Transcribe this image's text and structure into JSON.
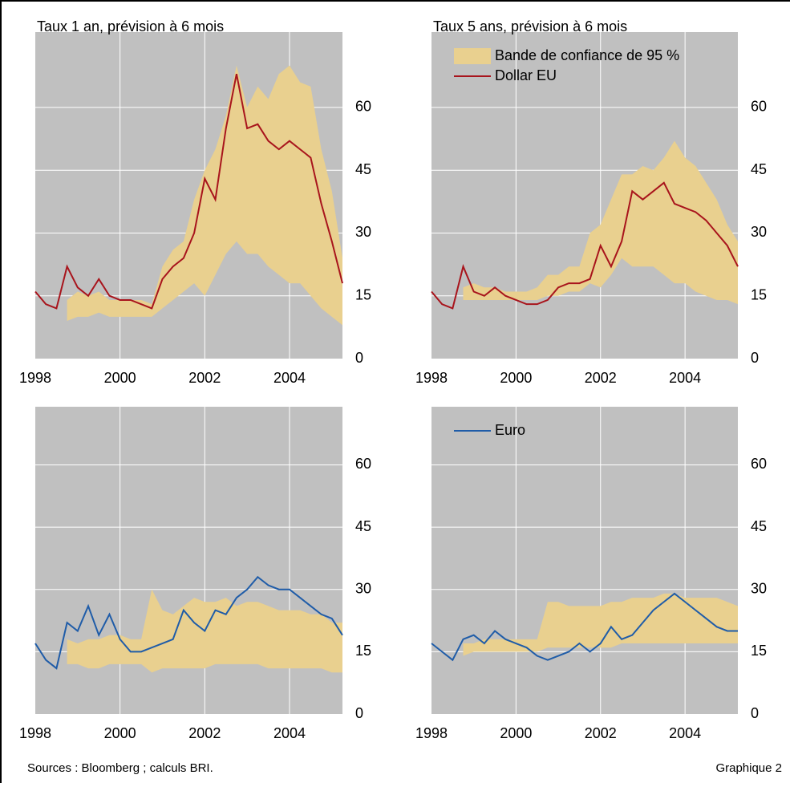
{
  "chart_data": [
    {
      "type": "line",
      "title": "Taux 1 an, prévision à 6 mois",
      "grid": true,
      "x": [
        1998,
        1998.25,
        1998.5,
        1998.75,
        1999,
        1999.25,
        1999.5,
        1999.75,
        2000,
        2000.25,
        2000.5,
        2000.75,
        2001,
        2001.25,
        2001.5,
        2001.75,
        2002,
        2002.25,
        2002.5,
        2002.75,
        2003,
        2003.25,
        2003.5,
        2003.75,
        2004,
        2004.25,
        2004.5,
        2004.75,
        2005,
        2005.25
      ],
      "xlim": [
        1998,
        2005.25
      ],
      "xticks": [
        1998,
        2000,
        2002,
        2004
      ],
      "ylim": [
        0,
        78
      ],
      "yticks": [
        0,
        15,
        30,
        45,
        60
      ],
      "series": [
        {
          "kind": "band",
          "color": "#e9d08f",
          "lower": [
            null,
            null,
            null,
            9,
            10,
            10,
            11,
            10,
            10,
            10,
            10,
            10,
            12,
            14,
            16,
            18,
            15,
            20,
            25,
            28,
            25,
            25,
            22,
            20,
            18,
            18,
            15,
            12,
            10,
            8
          ],
          "upper": [
            null,
            null,
            null,
            14,
            16,
            15,
            16,
            14,
            14,
            14,
            14,
            13,
            22,
            26,
            28,
            38,
            45,
            50,
            58,
            70,
            60,
            65,
            62,
            68,
            70,
            66,
            65,
            50,
            40,
            24
          ]
        },
        {
          "kind": "line",
          "color": "#a8141c",
          "values": [
            16,
            13,
            12,
            22,
            17,
            15,
            19,
            15,
            14,
            14,
            13,
            12,
            19,
            22,
            24,
            30,
            43,
            38,
            55,
            68,
            55,
            56,
            52,
            50,
            52,
            50,
            48,
            37,
            28,
            18
          ]
        }
      ]
    },
    {
      "type": "line",
      "title": "Taux 5 ans, prévision à 6 mois",
      "grid": true,
      "x": [
        1998,
        1998.25,
        1998.5,
        1998.75,
        1999,
        1999.25,
        1999.5,
        1999.75,
        2000,
        2000.25,
        2000.5,
        2000.75,
        2001,
        2001.25,
        2001.5,
        2001.75,
        2002,
        2002.25,
        2002.5,
        2002.75,
        2003,
        2003.25,
        2003.5,
        2003.75,
        2004,
        2004.25,
        2004.5,
        2004.75,
        2005,
        2005.25
      ],
      "xlim": [
        1998,
        2005.25
      ],
      "xticks": [
        1998,
        2000,
        2002,
        2004
      ],
      "ylim": [
        0,
        78
      ],
      "yticks": [
        0,
        15,
        30,
        45,
        60
      ],
      "series": [
        {
          "kind": "band",
          "name": "Bande de confiance de 95 %",
          "color": "#e9d08f",
          "lower": [
            null,
            null,
            null,
            14,
            14,
            14,
            14,
            14,
            14,
            14,
            14,
            15,
            15,
            16,
            16,
            18,
            17,
            20,
            24,
            22,
            22,
            22,
            20,
            18,
            18,
            16,
            15,
            14,
            14,
            13
          ],
          "upper": [
            null,
            null,
            null,
            17,
            18,
            17,
            17,
            16,
            16,
            16,
            17,
            20,
            20,
            22,
            22,
            30,
            32,
            38,
            44,
            44,
            46,
            45,
            48,
            52,
            48,
            46,
            42,
            38,
            32,
            28
          ]
        },
        {
          "kind": "line",
          "name": "Dollar EU",
          "color": "#a8141c",
          "values": [
            16,
            13,
            12,
            22,
            16,
            15,
            17,
            15,
            14,
            13,
            13,
            14,
            17,
            18,
            18,
            19,
            27,
            22,
            28,
            40,
            38,
            40,
            42,
            37,
            36,
            35,
            33,
            30,
            27,
            22
          ]
        }
      ]
    },
    {
      "type": "line",
      "grid": true,
      "x": [
        1998,
        1998.25,
        1998.5,
        1998.75,
        1999,
        1999.25,
        1999.5,
        1999.75,
        2000,
        2000.25,
        2000.5,
        2000.75,
        2001,
        2001.25,
        2001.5,
        2001.75,
        2002,
        2002.25,
        2002.5,
        2002.75,
        2003,
        2003.25,
        2003.5,
        2003.75,
        2004,
        2004.25,
        2004.5,
        2004.75,
        2005,
        2005.25
      ],
      "xlim": [
        1998,
        2005.25
      ],
      "xticks": [
        1998,
        2000,
        2002,
        2004
      ],
      "ylim": [
        0,
        74
      ],
      "yticks": [
        0,
        15,
        30,
        45,
        60
      ],
      "series": [
        {
          "kind": "band",
          "color": "#e9d08f",
          "lower": [
            null,
            null,
            null,
            12,
            12,
            11,
            11,
            12,
            12,
            12,
            12,
            10,
            11,
            11,
            11,
            11,
            11,
            12,
            12,
            12,
            12,
            12,
            11,
            11,
            11,
            11,
            11,
            11,
            10,
            10
          ],
          "upper": [
            null,
            null,
            null,
            18,
            17,
            18,
            18,
            19,
            19,
            18,
            18,
            30,
            25,
            24,
            26,
            28,
            27,
            27,
            28,
            26,
            27,
            27,
            26,
            25,
            25,
            25,
            24,
            24,
            22,
            22
          ]
        },
        {
          "kind": "line",
          "color": "#1f5ca8",
          "values": [
            17,
            13,
            11,
            22,
            20,
            26,
            19,
            24,
            18,
            15,
            15,
            16,
            17,
            18,
            25,
            22,
            20,
            25,
            24,
            28,
            30,
            33,
            31,
            30,
            30,
            28,
            26,
            24,
            23,
            19
          ]
        }
      ]
    },
    {
      "type": "line",
      "grid": true,
      "x": [
        1998,
        1998.25,
        1998.5,
        1998.75,
        1999,
        1999.25,
        1999.5,
        1999.75,
        2000,
        2000.25,
        2000.5,
        2000.75,
        2001,
        2001.25,
        2001.5,
        2001.75,
        2002,
        2002.25,
        2002.5,
        2002.75,
        2003,
        2003.25,
        2003.5,
        2003.75,
        2004,
        2004.25,
        2004.5,
        2004.75,
        2005,
        2005.25
      ],
      "xlim": [
        1998,
        2005.25
      ],
      "xticks": [
        1998,
        2000,
        2002,
        2004
      ],
      "ylim": [
        0,
        74
      ],
      "yticks": [
        0,
        15,
        30,
        45,
        60
      ],
      "series": [
        {
          "kind": "band",
          "color": "#e9d08f",
          "lower": [
            null,
            null,
            null,
            14,
            15,
            15,
            15,
            15,
            15,
            15,
            15,
            16,
            16,
            16,
            16,
            16,
            16,
            16,
            17,
            17,
            17,
            17,
            17,
            17,
            17,
            17,
            17,
            17,
            17,
            17
          ],
          "upper": [
            null,
            null,
            null,
            17,
            17,
            18,
            18,
            18,
            18,
            18,
            18,
            27,
            27,
            26,
            26,
            26,
            26,
            27,
            27,
            28,
            28,
            28,
            29,
            29,
            28,
            28,
            28,
            28,
            27,
            26
          ]
        },
        {
          "kind": "line",
          "name": "Euro",
          "color": "#1f5ca8",
          "values": [
            17,
            15,
            13,
            18,
            19,
            17,
            20,
            18,
            17,
            16,
            14,
            13,
            14,
            15,
            17,
            15,
            17,
            21,
            18,
            19,
            22,
            25,
            27,
            29,
            27,
            25,
            23,
            21,
            20,
            20
          ]
        }
      ]
    }
  ],
  "footer": {
    "source": "Sources : Bloomberg ; calculs BRI.",
    "label": "Graphique 2"
  }
}
